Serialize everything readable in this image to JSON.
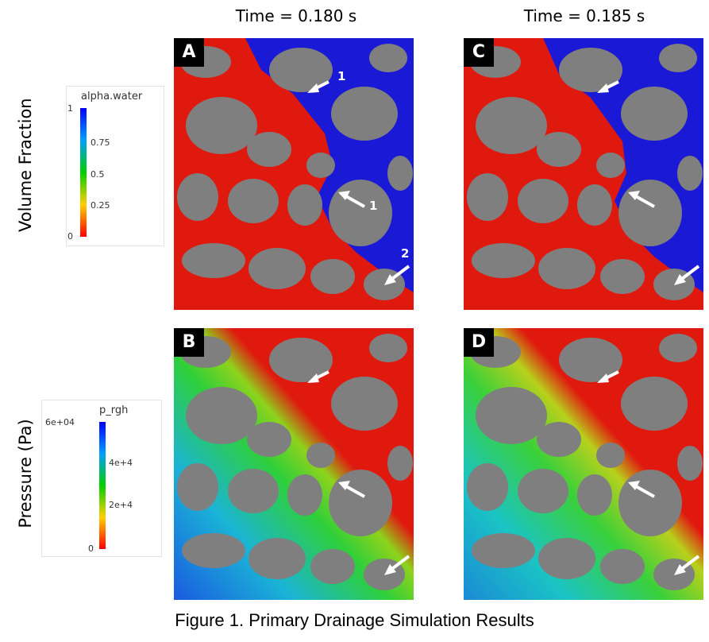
{
  "columns": [
    {
      "time_label": "Time = 0.180 s"
    },
    {
      "time_label": "Time = 0.185 s"
    }
  ],
  "rows": [
    {
      "label": "Volume Fraction"
    },
    {
      "label": "Pressure (Pa)"
    }
  ],
  "panels": [
    {
      "letter": "A"
    },
    {
      "letter": "C"
    },
    {
      "letter": "B"
    },
    {
      "letter": "D"
    }
  ],
  "arrow_labels": [
    "1",
    "1",
    "2"
  ],
  "legends": {
    "volume_fraction": {
      "title": "alpha.water",
      "ticks": [
        "1",
        "0.75",
        "0.5",
        "0.25",
        "0"
      ]
    },
    "pressure": {
      "title": "p_rgh",
      "ticks": [
        "6e+04",
        "4e+4",
        "2e+4",
        "0"
      ]
    }
  },
  "colors": {
    "water": "#1a1ad6",
    "oil": "#e0190f",
    "grain": "#7f7f7f"
  },
  "caption": "Figure 1. Primary Drainage Simulation Results"
}
